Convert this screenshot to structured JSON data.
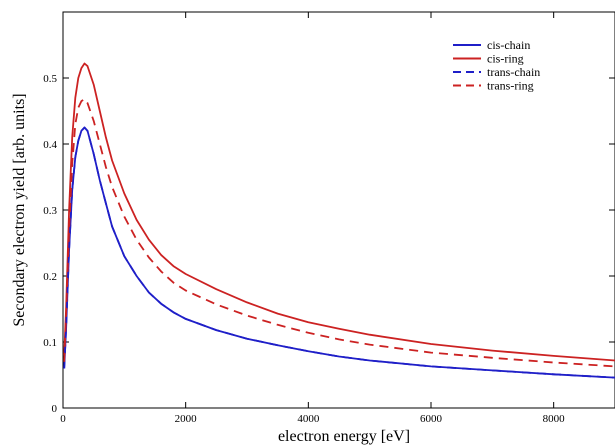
{
  "chart_data": {
    "type": "line",
    "title": "",
    "xlabel": "electron energy [eV]",
    "ylabel": "Secondary electron yield [arb. units]",
    "xlim": [
      0,
      9000
    ],
    "ylim": [
      0,
      0.6
    ],
    "x_ticks": [
      0,
      2000,
      4000,
      6000,
      8000
    ],
    "y_ticks": [
      0,
      0.1,
      0.2,
      0.3,
      0.4,
      0.5
    ],
    "x_tick_labels": [
      "0",
      "2000",
      "4000",
      "6000",
      "8000"
    ],
    "y_tick_labels": [
      "0",
      "0.1",
      "0.2",
      "0.3",
      "0.4",
      "0.5"
    ],
    "grid": false,
    "legend_position": "top-right",
    "series": [
      {
        "name": "cis-chain",
        "color": "#1f1fc8",
        "dash": "solid",
        "x": [
          20,
          50,
          100,
          150,
          200,
          250,
          300,
          350,
          400,
          500,
          600,
          700,
          800,
          1000,
          1200,
          1400,
          1600,
          1800,
          2000,
          2500,
          3000,
          3500,
          4000,
          4500,
          5000,
          6000,
          7000,
          8000,
          9000
        ],
        "y": [
          0.06,
          0.12,
          0.24,
          0.33,
          0.38,
          0.405,
          0.42,
          0.425,
          0.42,
          0.385,
          0.345,
          0.31,
          0.275,
          0.23,
          0.2,
          0.175,
          0.158,
          0.145,
          0.135,
          0.118,
          0.105,
          0.095,
          0.086,
          0.078,
          0.072,
          0.063,
          0.057,
          0.051,
          0.046
        ]
      },
      {
        "name": "cis-ring",
        "color": "#cc2222",
        "dash": "solid",
        "x": [
          20,
          50,
          100,
          150,
          200,
          250,
          300,
          350,
          400,
          500,
          600,
          700,
          800,
          1000,
          1200,
          1400,
          1600,
          1800,
          2000,
          2500,
          3000,
          3500,
          4000,
          4500,
          5000,
          6000,
          7000,
          8000,
          9000
        ],
        "y": [
          0.08,
          0.15,
          0.3,
          0.41,
          0.47,
          0.5,
          0.515,
          0.522,
          0.518,
          0.49,
          0.45,
          0.41,
          0.375,
          0.325,
          0.285,
          0.255,
          0.232,
          0.215,
          0.203,
          0.18,
          0.16,
          0.143,
          0.13,
          0.12,
          0.111,
          0.097,
          0.087,
          0.079,
          0.072
        ]
      },
      {
        "name": "trans-chain",
        "color": "#1f1fc8",
        "dash": "dashed",
        "x": [
          20,
          50,
          100,
          150,
          200,
          250,
          300,
          350,
          400,
          500,
          600,
          700,
          800,
          1000,
          1200,
          1400,
          1600,
          1800,
          2000,
          2500,
          3000,
          3500,
          4000,
          4500,
          5000,
          6000,
          7000,
          8000,
          9000
        ],
        "y": [
          0.06,
          0.12,
          0.24,
          0.33,
          0.38,
          0.405,
          0.42,
          0.425,
          0.42,
          0.385,
          0.345,
          0.31,
          0.275,
          0.23,
          0.2,
          0.175,
          0.158,
          0.145,
          0.135,
          0.118,
          0.105,
          0.095,
          0.086,
          0.078,
          0.072,
          0.063,
          0.057,
          0.051,
          0.046
        ]
      },
      {
        "name": "trans-ring",
        "color": "#cc2222",
        "dash": "dashed",
        "x": [
          20,
          50,
          100,
          150,
          200,
          250,
          300,
          350,
          400,
          500,
          600,
          700,
          800,
          1000,
          1200,
          1400,
          1600,
          1800,
          2000,
          2500,
          3000,
          3500,
          4000,
          4500,
          5000,
          6000,
          7000,
          8000,
          9000
        ],
        "y": [
          0.07,
          0.14,
          0.27,
          0.37,
          0.43,
          0.455,
          0.465,
          0.468,
          0.462,
          0.435,
          0.4,
          0.365,
          0.335,
          0.29,
          0.255,
          0.228,
          0.207,
          0.19,
          0.178,
          0.157,
          0.14,
          0.126,
          0.114,
          0.104,
          0.096,
          0.084,
          0.076,
          0.069,
          0.063
        ]
      }
    ]
  }
}
